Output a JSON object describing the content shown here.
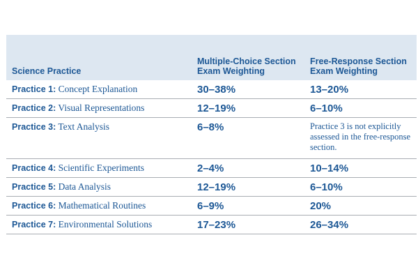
{
  "headers": {
    "practice": "Science Practice",
    "multiple_choice": "Multiple-Choice Section Exam Weighting",
    "free_response": "Free-Response Section Exam Weighting"
  },
  "rows": [
    {
      "practice_number": "Practice 1:",
      "practice_name": "Concept Explanation",
      "multiple_choice": "30–38%",
      "free_response": "13–20%"
    },
    {
      "practice_number": "Practice 2:",
      "practice_name": "Visual Representations",
      "multiple_choice": "12–19%",
      "free_response": "6–10%"
    },
    {
      "practice_number": "Practice 3:",
      "practice_name": "Text Analysis",
      "multiple_choice": "6–8%",
      "free_response": "Practice 3 is not explicitly assessed in the free-response section."
    },
    {
      "practice_number": "Practice 4:",
      "practice_name": "Scientific Experiments",
      "multiple_choice": "2–4%",
      "free_response": "10–14%"
    },
    {
      "practice_number": "Practice 5:",
      "practice_name": "Data Analysis",
      "multiple_choice": "12–19%",
      "free_response": "6–10%"
    },
    {
      "practice_number": "Practice 6:",
      "practice_name": "Mathematical Routines",
      "multiple_choice": "6–9%",
      "free_response": "20%"
    },
    {
      "practice_number": "Practice 7:",
      "practice_name": "Environmental Solutions",
      "multiple_choice": "17–23%",
      "free_response": "26–34%"
    }
  ],
  "colors": {
    "header_background": "#dde7f1",
    "text": "#1c5795",
    "row_divider": "#a8acb2"
  }
}
